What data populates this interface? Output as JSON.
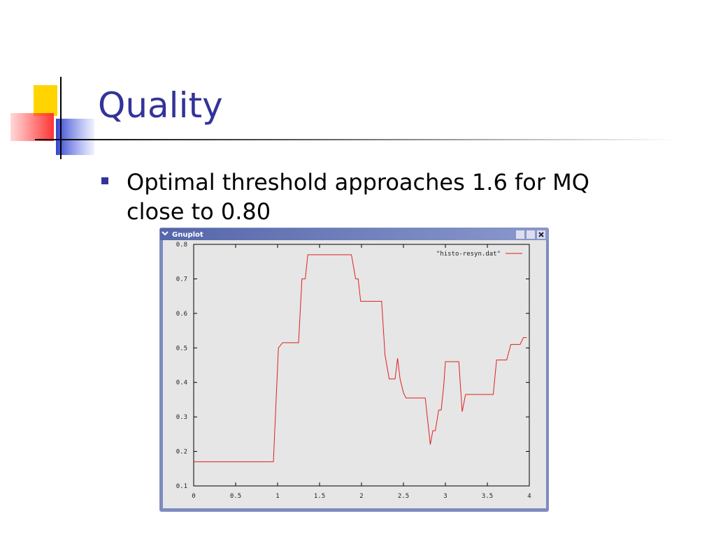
{
  "slide": {
    "title": "Quality",
    "bullet": [
      "Optimal threshold approaches 1.6 for MQ",
      "close to 0.80"
    ]
  },
  "window": {
    "title": "Gnuplot"
  },
  "chart_data": {
    "type": "line",
    "x": [
      0,
      0.95,
      1.01,
      1.06,
      1.25,
      1.29,
      1.33,
      1.36,
      1.88,
      1.93,
      1.96,
      1.99,
      2.24,
      2.28,
      2.33,
      2.4,
      2.43,
      2.46,
      2.5,
      2.53,
      2.76,
      2.82,
      2.85,
      2.88,
      2.92,
      2.95,
      2.98,
      3.0,
      3.16,
      3.2,
      3.24,
      3.57,
      3.61,
      3.73,
      3.78,
      3.89,
      3.93,
      3.97
    ],
    "series": [
      {
        "name": "\"histo-resyn.dat\"",
        "color": "#e02020",
        "values": [
          0.17,
          0.17,
          0.5,
          0.515,
          0.515,
          0.7,
          0.7,
          0.77,
          0.77,
          0.7,
          0.7,
          0.635,
          0.635,
          0.48,
          0.41,
          0.41,
          0.47,
          0.41,
          0.37,
          0.355,
          0.355,
          0.22,
          0.26,
          0.26,
          0.32,
          0.32,
          0.39,
          0.46,
          0.46,
          0.315,
          0.365,
          0.365,
          0.465,
          0.465,
          0.51,
          0.51,
          0.53,
          0.53
        ]
      }
    ],
    "xlim": [
      0,
      4
    ],
    "ylim": [
      0.1,
      0.8
    ],
    "xticks": [
      0,
      0.5,
      1,
      1.5,
      2,
      2.5,
      3,
      3.5,
      4
    ],
    "yticks": [
      0.1,
      0.2,
      0.3,
      0.4,
      0.5,
      0.6,
      0.7,
      0.8
    ],
    "legend": "upper right"
  }
}
